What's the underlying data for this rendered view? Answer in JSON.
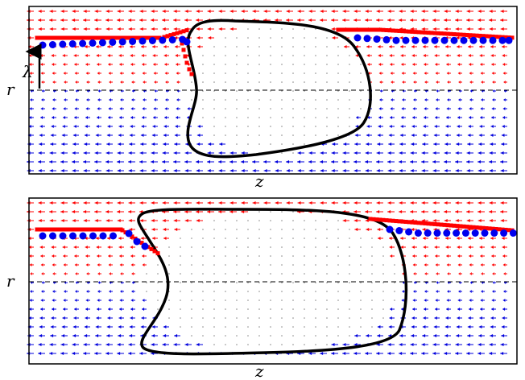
{
  "labels": {
    "z_top": "z",
    "z_bottom": "z",
    "r_top": "r",
    "r_bottom": "r",
    "lambda": "λ"
  },
  "colors": {
    "upper_flow": "#ff0000",
    "lower_flow": "#0000dd",
    "interface_model": "#ff0000",
    "interface_measured": "#0000ee",
    "bubble_outline": "#000000",
    "centerline": "#000000",
    "frame": "#000000",
    "core_dots": "#888888"
  },
  "icons": {
    "lambda_marker": "up-arrow-icon"
  }
}
